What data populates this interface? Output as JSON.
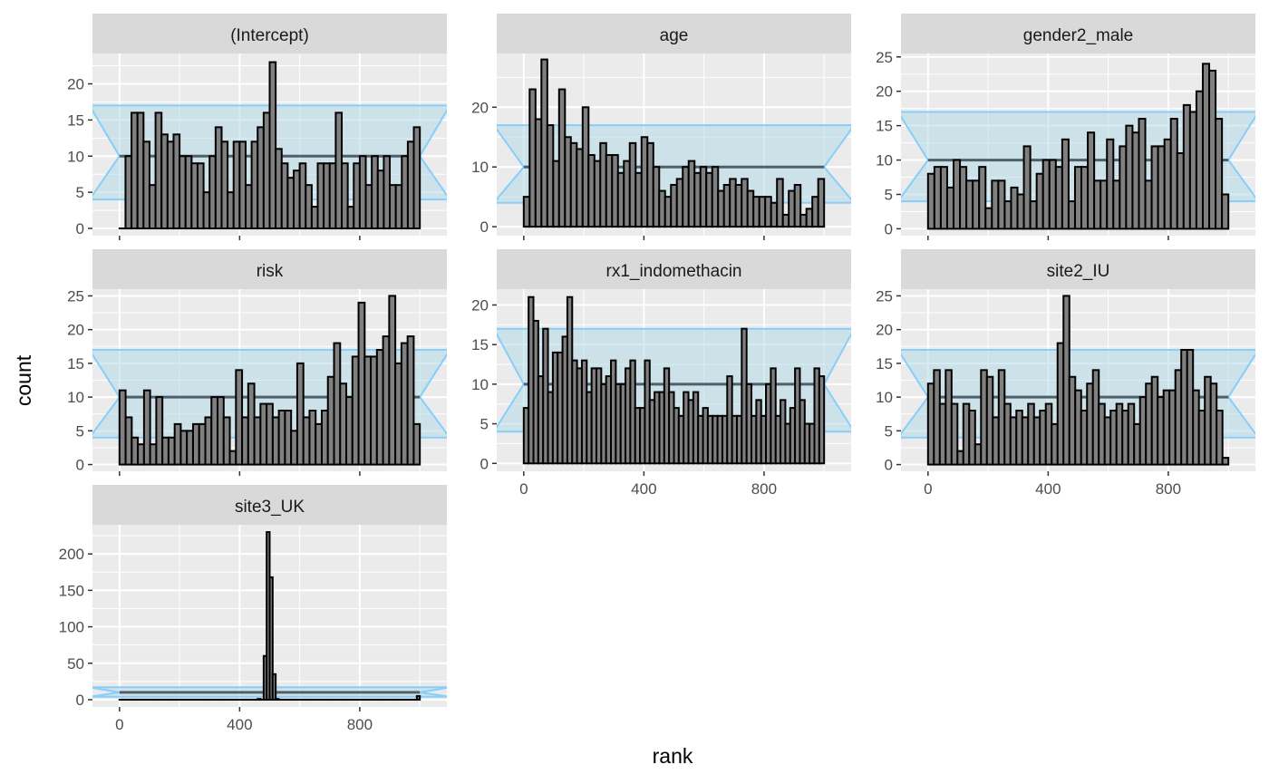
{
  "chart_data": {
    "type": "bar",
    "subtype": "faceted-histogram",
    "xlabel": "rank",
    "ylabel": "count",
    "x_ticks": [
      0,
      400,
      800
    ],
    "x_range": [
      -90,
      1090
    ],
    "bin_width": 10,
    "band": {
      "lower": 4,
      "mid": 10,
      "upper": 17,
      "x_left": -100,
      "x_inner_left": 0,
      "x_inner_right": 1000,
      "x_right": 1100
    },
    "colors": {
      "panel_bg": "#ebebeb",
      "grid": "#ffffff",
      "strip_bg": "#d9d9d9",
      "bar_fill": "#808080",
      "bar_stroke": "#000000",
      "band_fill": "#add8e6",
      "band_stroke": "#87cefa",
      "mid_line": "#4f5f6b"
    },
    "facets": [
      {
        "name": "(Intercept)",
        "y_range": [
          -1,
          24.2
        ],
        "y_ticks": [
          0,
          5,
          10,
          15,
          20
        ],
        "values": [
          0,
          10,
          16,
          16,
          12,
          6,
          16,
          13,
          12,
          13,
          10,
          10,
          9,
          9,
          5,
          10,
          14,
          12,
          5,
          12,
          12,
          6,
          12,
          14,
          16,
          23,
          11,
          9,
          7,
          8,
          9,
          6,
          3,
          9,
          9,
          9,
          16,
          9,
          3,
          9,
          10,
          6,
          10,
          8,
          10,
          6,
          6,
          10,
          12,
          14
        ]
      },
      {
        "name": "age",
        "y_range": [
          -1.5,
          29
        ],
        "y_ticks": [
          0,
          10,
          20
        ],
        "values": [
          5,
          23,
          18,
          28,
          17,
          11,
          23,
          15,
          14,
          13,
          20,
          12,
          11,
          14,
          12,
          12,
          9,
          11,
          14,
          9,
          15,
          14,
          10,
          6,
          5,
          7,
          8,
          10,
          11,
          9,
          10,
          9,
          10,
          6,
          7,
          8,
          7,
          8,
          6,
          5,
          5,
          5,
          4,
          8,
          2,
          6,
          7,
          2,
          3,
          5,
          8
        ]
      },
      {
        "name": "gender2_male",
        "y_range": [
          -1,
          25.5
        ],
        "y_ticks": [
          0,
          5,
          10,
          15,
          20,
          25
        ],
        "values": [
          8,
          9,
          9,
          6,
          10,
          9,
          7,
          7,
          9,
          3,
          7,
          7,
          4,
          6,
          5,
          12,
          4,
          8,
          10,
          10,
          9,
          13,
          4,
          9,
          9,
          14,
          7,
          7,
          13,
          7,
          12,
          15,
          14,
          16,
          7,
          12,
          12,
          13,
          16,
          11,
          18,
          17,
          20,
          24,
          23,
          16,
          5
        ]
      },
      {
        "name": "risk",
        "y_range": [
          -1,
          26
        ],
        "y_ticks": [
          0,
          5,
          10,
          15,
          20,
          25
        ],
        "values": [
          11,
          7,
          4,
          3,
          11,
          3,
          10,
          4,
          4,
          6,
          5,
          5,
          6,
          6,
          7,
          10,
          10,
          7,
          2,
          14,
          7,
          12,
          7,
          9,
          9,
          7,
          8,
          8,
          5,
          15,
          7,
          8,
          6,
          8,
          13,
          18,
          12,
          10,
          16,
          24,
          16,
          16,
          17,
          19,
          25,
          15,
          18,
          19,
          6
        ]
      },
      {
        "name": "rx1_indomethacin",
        "y_range": [
          -1,
          22
        ],
        "y_ticks": [
          0,
          5,
          10,
          15,
          20
        ],
        "values": [
          7,
          21,
          18,
          11,
          17,
          9,
          14,
          14,
          16,
          21,
          13,
          12,
          13,
          9,
          12,
          12,
          10,
          11,
          13,
          10,
          10,
          12,
          13,
          7,
          7,
          13,
          8,
          9,
          9,
          12,
          9,
          7,
          6,
          9,
          8,
          9,
          6,
          7,
          6,
          6,
          6,
          6,
          11,
          6,
          6,
          17,
          10,
          6,
          8,
          6,
          10,
          12,
          6,
          8,
          5,
          7,
          12,
          8,
          5,
          5,
          12,
          11
        ]
      },
      {
        "name": "site2_IU",
        "y_range": [
          -1,
          26
        ],
        "y_ticks": [
          0,
          5,
          10,
          15,
          20,
          25
        ],
        "values": [
          12,
          14,
          9,
          14,
          9,
          2,
          9,
          8,
          3,
          14,
          13,
          7,
          14,
          9,
          7,
          8,
          7,
          9,
          7,
          8,
          9,
          6,
          18,
          25,
          13,
          11,
          8,
          12,
          14,
          9,
          7,
          8,
          9,
          8,
          9,
          6,
          10,
          12,
          13,
          10,
          11,
          11,
          14,
          17,
          17,
          11,
          8,
          13,
          12,
          8,
          1
        ]
      },
      {
        "name": "site3_UK",
        "y_range": [
          -10,
          240
        ],
        "y_ticks": [
          0,
          50,
          100,
          150,
          200
        ],
        "values": [
          0,
          0,
          0,
          0,
          0,
          0,
          0,
          0,
          0,
          0,
          0,
          0,
          0,
          0,
          0,
          0,
          0,
          0,
          0,
          0,
          0,
          0,
          0,
          0,
          0,
          0,
          0,
          0,
          0,
          0,
          0,
          0,
          0,
          0,
          0,
          0,
          0,
          0,
          0,
          0,
          0,
          0,
          0,
          0,
          0,
          0,
          1,
          0,
          60,
          230,
          168,
          35,
          1,
          0,
          0,
          0,
          0,
          0,
          0,
          0,
          0,
          0,
          0,
          0,
          0,
          0,
          0,
          0,
          0,
          0,
          0,
          0,
          0,
          0,
          0,
          0,
          0,
          0,
          0,
          0,
          0,
          0,
          0,
          0,
          0,
          0,
          0,
          0,
          0,
          0,
          0,
          0,
          0,
          0,
          0,
          0,
          0,
          0,
          0,
          5
        ]
      }
    ]
  }
}
